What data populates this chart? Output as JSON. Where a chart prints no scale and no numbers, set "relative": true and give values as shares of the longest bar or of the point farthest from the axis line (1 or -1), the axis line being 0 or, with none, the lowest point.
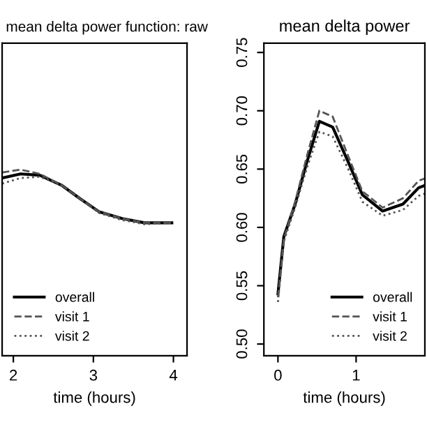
{
  "chart_data": [
    {
      "type": "line",
      "title": "mean delta power function: raw",
      "xlabel": "time (hours)",
      "relative": true,
      "tick_labels": "x",
      "xlim": [
        1.86,
        4.17
      ],
      "xticks": [
        2,
        3,
        4
      ],
      "legend": "bottom left",
      "grid": false,
      "x": [
        1.86,
        2.09,
        2.33,
        2.6,
        2.84,
        3.07,
        3.36,
        3.64,
        3.98
      ],
      "series": [
        {
          "name": "overall",
          "color": "#000000",
          "line_style": "solid",
          "values": [
            0.955,
            0.977,
            0.97,
            0.917,
            0.842,
            0.774,
            0.737,
            0.714,
            0.714
          ]
        },
        {
          "name": "visit 1",
          "color": "#555555",
          "line_style": "dashed",
          "values": [
            0.985,
            1,
            0.977,
            0.917,
            0.842,
            0.774,
            0.737,
            0.714,
            0.714
          ]
        },
        {
          "name": "visit 2",
          "color": "#555555",
          "line_style": "dotted",
          "values": [
            0.925,
            0.955,
            0.962,
            0.917,
            0.842,
            0.767,
            0.729,
            0.707,
            0.714
          ]
        }
      ]
    },
    {
      "type": "line",
      "title": "mean delta power",
      "xlabel": "time (hours)",
      "xlim": [
        -0.18,
        1.88
      ],
      "xticks": [
        0,
        1
      ],
      "ylim": [
        0.49,
        0.758
      ],
      "yticks": [
        {
          "value": 0.5,
          "label": "0.50"
        },
        {
          "value": 0.55,
          "label": "0.55"
        },
        {
          "value": 0.6,
          "label": "0.60"
        },
        {
          "value": 0.65,
          "label": "0.65"
        },
        {
          "value": 0.7,
          "label": "0.70"
        },
        {
          "value": 0.75,
          "label": "0.75"
        }
      ],
      "legend": "bottom right",
      "grid": false,
      "x": [
        0,
        0.075,
        0.22,
        0.37,
        0.53,
        0.7,
        0.9,
        1.08,
        1.34,
        1.6,
        1.8,
        1.88
      ],
      "series": [
        {
          "name": "overall",
          "color": "#000000",
          "line_style": "solid",
          "values": [
            0.543,
            0.592,
            0.62,
            0.656,
            0.691,
            0.686,
            0.656,
            0.628,
            0.614,
            0.62,
            0.634,
            0.636
          ]
        },
        {
          "name": "visit 1",
          "color": "#555555",
          "line_style": "dashed",
          "values": [
            0.54,
            0.59,
            0.622,
            0.661,
            0.7,
            0.695,
            0.661,
            0.631,
            0.617,
            0.625,
            0.64,
            0.642
          ]
        },
        {
          "name": "visit 2",
          "color": "#555555",
          "line_style": "dotted",
          "values": [
            0.536,
            0.588,
            0.617,
            0.651,
            0.682,
            0.678,
            0.65,
            0.622,
            0.61,
            0.615,
            0.627,
            0.629
          ]
        }
      ]
    }
  ]
}
